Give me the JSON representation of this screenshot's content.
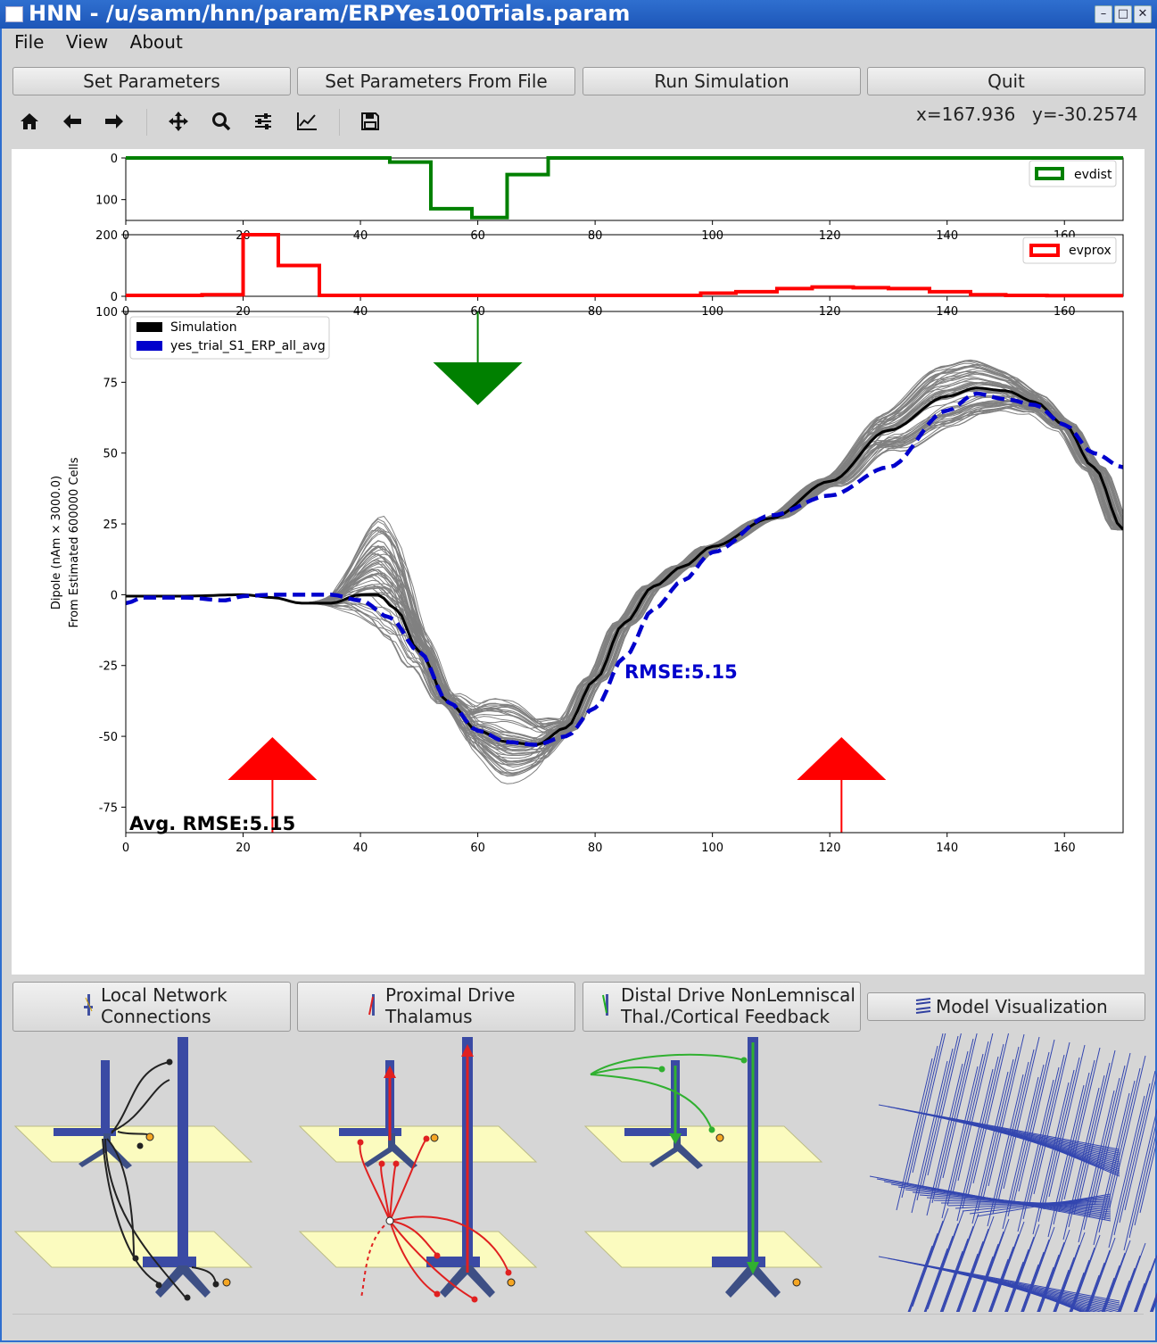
{
  "window": {
    "title": "HNN - /u/samn/hnn/param/ERPYes100Trials.param"
  },
  "menu": {
    "file": "File",
    "view": "View",
    "about": "About"
  },
  "buttons": {
    "set_params": "Set Parameters",
    "set_params_file": "Set Parameters From File",
    "run_sim": "Run Simulation",
    "quit": "Quit"
  },
  "toolbar_icons": [
    "home-icon",
    "back-icon",
    "forward-icon",
    "pan-icon",
    "zoom-icon",
    "configure-subplots-icon",
    "edit-axis-icon",
    "save-icon"
  ],
  "coords": {
    "x": "x=167.936",
    "y": "y=-30.2574"
  },
  "plot": {
    "ylabel_line1": "Dipole (nAm × 3000.0)",
    "ylabel_line2": "From Estimated 600000 Cells",
    "legend_sim": "Simulation",
    "legend_data": "yes_trial_S1_ERP_all_avg",
    "legend_evdist": "evdist",
    "legend_evprox": "evprox",
    "rmse": "RMSE:5.15",
    "avg_rmse": "Avg. RMSE:5.15"
  },
  "bottom": {
    "local_net": "Local Network\nConnections",
    "proximal": "Proximal Drive\nThalamus",
    "distal": "Distal Drive NonLemniscal\nThal./Cortical Feedback",
    "model_vis": "Model Visualization"
  },
  "colors": {
    "evdist": "#008000",
    "evprox": "#ff0000",
    "sim": "#000000",
    "data": "#0000cc",
    "trials": "#808080"
  },
  "chart_data": [
    {
      "type": "line",
      "title": "",
      "legend": [
        "evdist"
      ],
      "x": [
        0,
        40,
        45,
        52,
        59,
        65,
        72,
        79,
        170
      ],
      "y": [
        0,
        0,
        10,
        122,
        143,
        40,
        0,
        0,
        0
      ],
      "xlim": [
        0,
        170
      ],
      "ylim": [
        150,
        0
      ],
      "yticks": [
        0,
        100
      ],
      "xticks": [
        0,
        20,
        40,
        60,
        80,
        100,
        120,
        140,
        160
      ],
      "legend_position": "upper right"
    },
    {
      "type": "line",
      "title": "",
      "legend": [
        "evprox"
      ],
      "x": [
        0,
        13,
        20,
        26,
        33,
        85,
        98,
        104,
        111,
        117,
        124,
        130,
        137,
        144,
        150,
        157,
        170
      ],
      "y": [
        3,
        5,
        200,
        100,
        3,
        3,
        10,
        15,
        25,
        30,
        28,
        25,
        15,
        5,
        3,
        2,
        2
      ],
      "xlim": [
        0,
        170
      ],
      "ylim": [
        0,
        200
      ],
      "yticks": [
        0,
        200
      ],
      "xticks": [
        0,
        20,
        40,
        60,
        80,
        100,
        120,
        140,
        160
      ],
      "legend_position": "upper right"
    },
    {
      "type": "line",
      "title": "",
      "ylabel": "Dipole (nAm × 3000.0)\nFrom Estimated 600000 Cells",
      "xlim": [
        0,
        170
      ],
      "ylim": [
        -84,
        100
      ],
      "xticks": [
        0,
        20,
        40,
        60,
        80,
        100,
        120,
        140,
        160
      ],
      "yticks": [
        -75,
        -50,
        -25,
        0,
        25,
        50,
        75,
        100
      ],
      "legend_position": "upper left",
      "series": [
        {
          "name": "Simulation",
          "x": [
            0,
            10,
            20,
            25,
            30,
            35,
            40,
            43,
            46,
            50,
            55,
            60,
            65,
            70,
            75,
            80,
            85,
            90,
            95,
            100,
            110,
            120,
            130,
            140,
            145,
            150,
            155,
            160,
            165,
            170
          ],
          "y": [
            -0.5,
            -0.5,
            0,
            -1,
            -3,
            -3,
            0,
            0,
            -5,
            -20,
            -38,
            -48,
            -52,
            -53,
            -47,
            -30,
            -10,
            3,
            10,
            17,
            27,
            40,
            58,
            70,
            73,
            72,
            68,
            60,
            45,
            23
          ]
        },
        {
          "name": "yes_trial_S1_ERP_all_avg",
          "x": [
            0,
            3,
            10,
            17,
            20,
            25,
            30,
            35,
            40,
            45,
            50,
            55,
            60,
            65,
            70,
            75,
            80,
            85,
            90,
            95,
            100,
            110,
            120,
            130,
            140,
            145,
            150,
            155,
            160,
            165,
            170
          ],
          "y": [
            -3,
            -1,
            -1,
            -2,
            -0.5,
            0,
            0,
            0,
            -2,
            -8,
            -20,
            -38,
            -48,
            -52,
            -53,
            -50,
            -40,
            -22,
            -5,
            5,
            15,
            28,
            35,
            45,
            65,
            71,
            69,
            67,
            60,
            50,
            45
          ]
        }
      ],
      "annotations": [
        "RMSE:5.15",
        "Avg. RMSE:5.15"
      ],
      "drive_arrows": [
        {
          "type": "distal",
          "x": 60,
          "color": "#008000"
        },
        {
          "type": "proximal",
          "x": 25,
          "color": "#ff0000"
        },
        {
          "type": "proximal",
          "x": 122,
          "color": "#ff0000"
        }
      ]
    }
  ]
}
